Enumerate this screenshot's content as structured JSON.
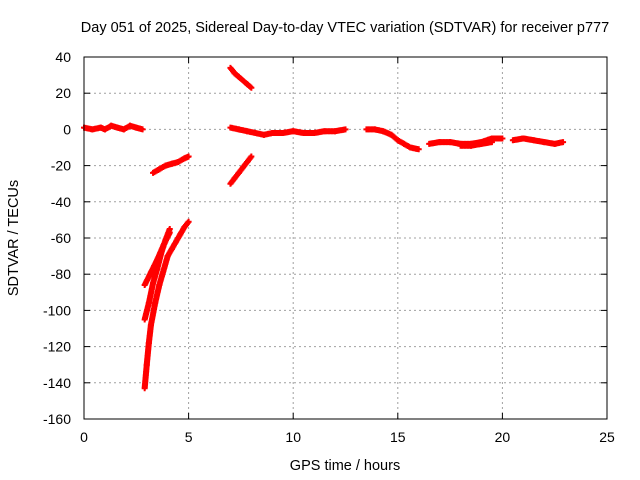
{
  "chart_data": {
    "type": "scatter",
    "title": "Day 051 of 2025, Sidereal Day-to-day VTEC variation (SDTVAR) for receiver p777",
    "xlabel": "GPS time / hours",
    "ylabel": "SDTVAR / TECUs",
    "xlim": [
      0,
      25
    ],
    "ylim": [
      -160,
      40
    ],
    "xticks": [
      0,
      5,
      10,
      15,
      20,
      25
    ],
    "yticks": [
      40,
      20,
      0,
      -20,
      -40,
      -60,
      -80,
      -100,
      -120,
      -140,
      -160
    ],
    "grid": true,
    "marker": "plus",
    "color": "#ff0000",
    "series": [
      {
        "name": "seg-0",
        "x": [
          0.0,
          0.4,
          0.8,
          1.0,
          1.3,
          1.6,
          1.9,
          2.2,
          2.5,
          2.8
        ],
        "y": [
          1,
          0,
          1,
          0,
          2,
          1,
          0,
          2,
          1,
          0
        ]
      },
      {
        "name": "seg-1",
        "x": [
          3.3,
          3.6,
          3.9,
          4.2,
          4.5,
          4.8,
          5.0
        ],
        "y": [
          -24,
          -22,
          -20,
          -19,
          -18,
          -16,
          -15
        ]
      },
      {
        "name": "seg-2",
        "x": [
          2.9,
          3.0,
          3.1,
          3.2,
          3.4,
          3.6,
          3.8,
          4.0,
          4.2,
          4.4,
          4.6,
          4.8,
          5.0
        ],
        "y": [
          -143,
          -130,
          -118,
          -108,
          -96,
          -86,
          -78,
          -70,
          -66,
          -62,
          -58,
          -54,
          -51
        ]
      },
      {
        "name": "seg-3",
        "x": [
          2.9,
          3.1,
          3.3,
          3.5,
          3.7,
          3.9,
          4.1
        ],
        "y": [
          -105,
          -96,
          -85,
          -77,
          -68,
          -61,
          -55
        ]
      },
      {
        "name": "seg-4",
        "x": [
          2.9,
          3.2,
          3.5,
          3.8,
          4.1
        ],
        "y": [
          -86,
          -79,
          -72,
          -64,
          -57
        ]
      },
      {
        "name": "seg-5",
        "x": [
          7.0,
          7.2,
          7.4,
          7.6,
          7.8,
          8.0
        ],
        "y": [
          34,
          31,
          29,
          27,
          25,
          23
        ]
      },
      {
        "name": "seg-6",
        "x": [
          7.0,
          7.2,
          7.4,
          7.6,
          7.8,
          8.0
        ],
        "y": [
          -30,
          -27,
          -24,
          -21,
          -18,
          -15
        ]
      },
      {
        "name": "seg-7",
        "x": [
          7.0,
          7.4,
          7.8,
          8.2,
          8.6,
          9.0,
          9.5,
          10.0,
          10.5,
          11.0,
          11.5,
          12.0,
          12.5
        ],
        "y": [
          1,
          0,
          -1,
          -2,
          -3,
          -2,
          -2,
          -1,
          -2,
          -2,
          -1,
          -1,
          0
        ]
      },
      {
        "name": "seg-8",
        "x": [
          13.5,
          13.9,
          14.3,
          14.7,
          15.0,
          15.3,
          15.6,
          16.0
        ],
        "y": [
          0,
          0,
          -1,
          -3,
          -6,
          -8,
          -10,
          -11
        ]
      },
      {
        "name": "seg-9",
        "x": [
          16.5,
          17.0,
          17.5,
          18.0,
          18.5,
          19.0,
          19.5,
          20.0
        ],
        "y": [
          -8,
          -7,
          -7,
          -8,
          -8,
          -7,
          -5,
          -5
        ]
      },
      {
        "name": "seg-10",
        "x": [
          18.0,
          18.5,
          19.0,
          19.5
        ],
        "y": [
          -9,
          -9,
          -8,
          -7
        ]
      },
      {
        "name": "seg-11",
        "x": [
          20.5,
          21.0,
          21.5,
          22.0,
          22.5,
          22.9
        ],
        "y": [
          -6,
          -5,
          -6,
          -7,
          -8,
          -7
        ]
      }
    ]
  }
}
